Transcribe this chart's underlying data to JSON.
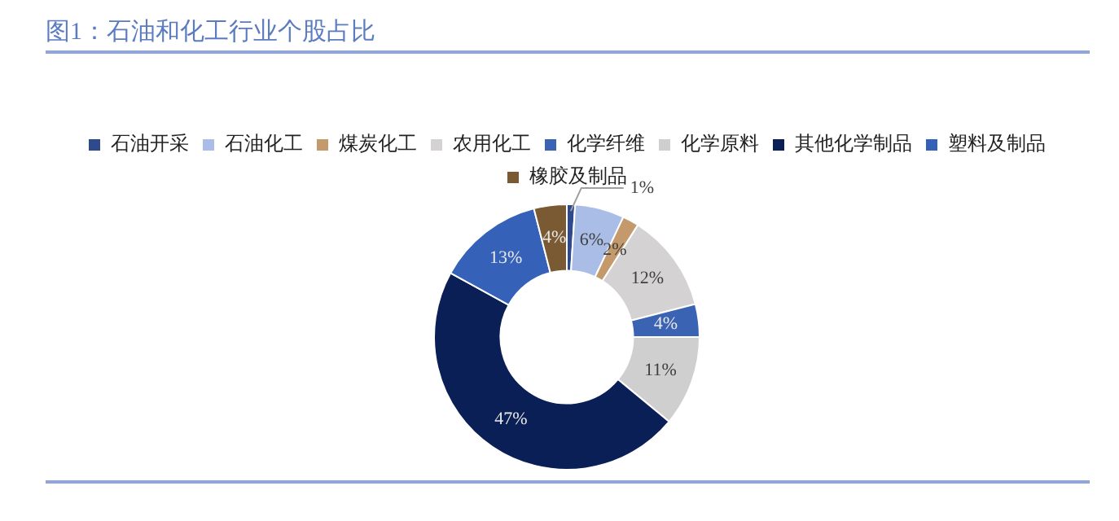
{
  "chart_data": {
    "type": "donut",
    "title": "图1：石油和化工行业个股占比",
    "categories": [
      "石油开采",
      "石油化工",
      "煤炭化工",
      "农用化工",
      "化学纤维",
      "化学原料",
      "其他化学制品",
      "塑料及制品",
      "橡胶及制品"
    ],
    "values": [
      1,
      6,
      2,
      12,
      4,
      11,
      47,
      13,
      4
    ],
    "value_labels": [
      "1%",
      "6%",
      "2%",
      "12%",
      "4%",
      "11%",
      "47%",
      "13%",
      "4%"
    ],
    "colors": [
      "#2e4a8c",
      "#a9bde6",
      "#c49a6c",
      "#d4d2d2",
      "#3a63b3",
      "#d0cfcf",
      "#0b1f57",
      "#3562b8",
      "#7a5a32"
    ],
    "legend": "top"
  }
}
